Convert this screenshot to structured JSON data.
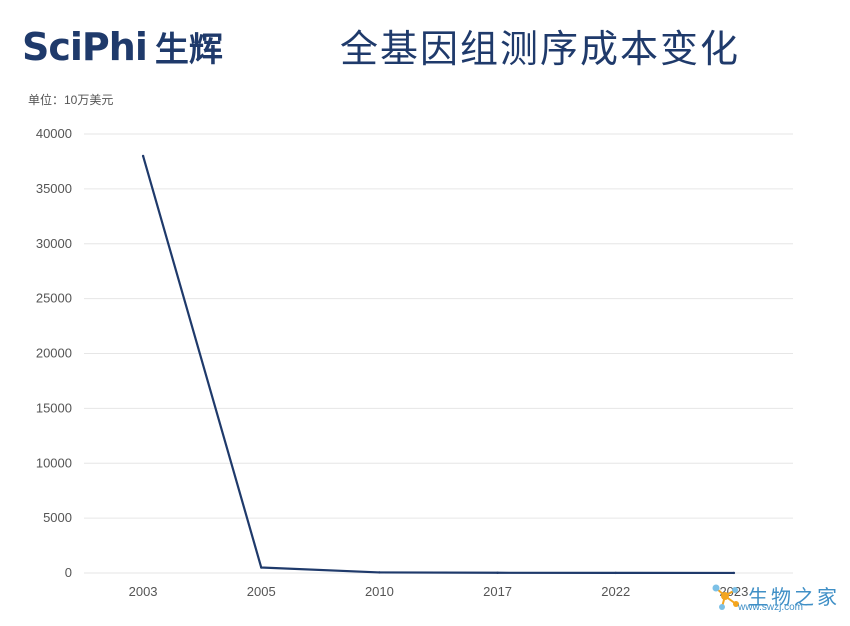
{
  "header": {
    "logo_brand": "SciPhi",
    "logo_cn": "生辉",
    "title": "全基因组测序成本变化"
  },
  "unit_label": "单位：10万美元",
  "watermark": {
    "cn": "生物之家",
    "url": "www.swzj.com"
  },
  "colors": {
    "line": "#1f3a6b",
    "grid": "#e6e6e6",
    "tick_text": "#555555"
  },
  "chart_data": {
    "type": "line",
    "title": "全基因组测序成本变化",
    "ylabel": "单位：10万美元",
    "xlabel": "",
    "categories": [
      "2003",
      "2005",
      "2010",
      "2017",
      "2022",
      "2023"
    ],
    "series": [
      {
        "values": [
          38000,
          500,
          50,
          20,
          10,
          5
        ]
      }
    ],
    "ylim": [
      0,
      40000
    ],
    "yticks": [
      "0",
      "5000",
      "10000",
      "15000",
      "20000",
      "25000",
      "30000",
      "35000",
      "40000"
    ],
    "grid": true,
    "legend": "none"
  }
}
